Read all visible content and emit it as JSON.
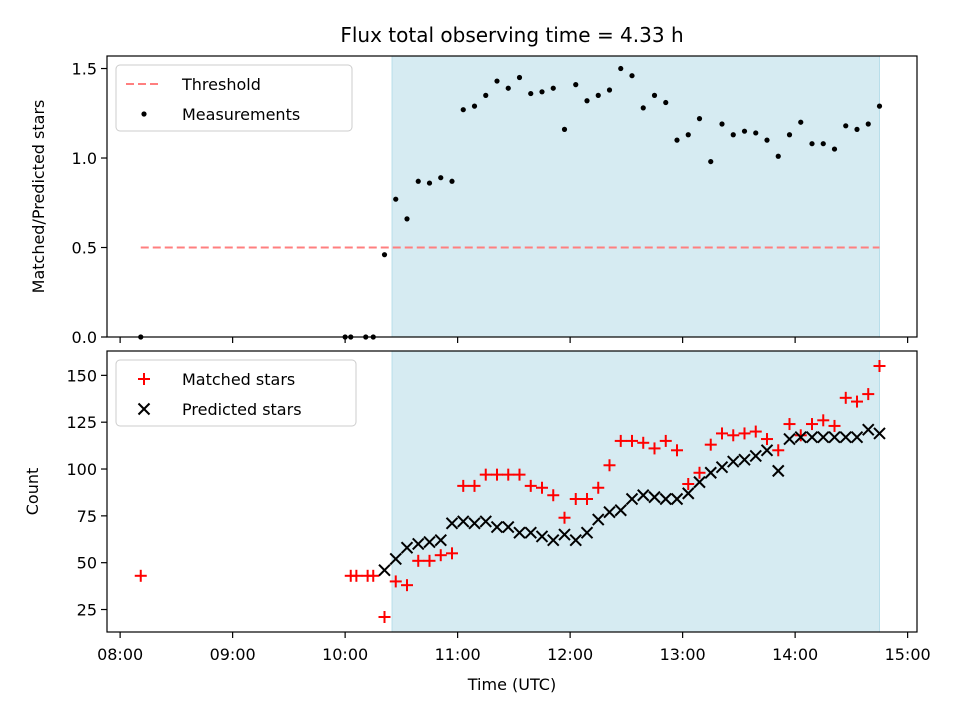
{
  "chart_data": [
    {
      "type": "scatter",
      "title": "Flux total observing time = 4.33 h",
      "xlabel": "",
      "ylabel": "Matched/Predicted stars",
      "xlim": [
        "07:53",
        "15:05"
      ],
      "ylim": [
        0,
        1.57
      ],
      "yticks": [
        0.0,
        0.5,
        1.0,
        1.5
      ],
      "ytick_labels": [
        "0.0",
        "0.5",
        "1.0",
        "1.5"
      ],
      "legend_position": "upper-left",
      "shaded_region": {
        "start": "10:25",
        "end": "14:45",
        "color": "#add8e6"
      },
      "series": [
        {
          "name": "Threshold",
          "style": "dashed-line",
          "color": "#ff7f7f",
          "x": [
            "08:11",
            "14:45"
          ],
          "y": [
            0.5,
            0.5
          ]
        },
        {
          "name": "Measurements",
          "style": "point",
          "color": "#000000",
          "x": [
            "08:11",
            "10:00",
            "10:03",
            "10:11",
            "10:15",
            "10:21",
            "10:27",
            "10:33",
            "10:39",
            "10:45",
            "10:51",
            "10:57",
            "11:03",
            "11:09",
            "11:15",
            "11:21",
            "11:27",
            "11:33",
            "11:39",
            "11:45",
            "11:51",
            "11:57",
            "12:03",
            "12:09",
            "12:15",
            "12:21",
            "12:27",
            "12:33",
            "12:39",
            "12:45",
            "12:51",
            "12:57",
            "13:03",
            "13:09",
            "13:15",
            "13:21",
            "13:27",
            "13:33",
            "13:39",
            "13:45",
            "13:51",
            "13:57",
            "14:03",
            "14:09",
            "14:15",
            "14:21",
            "14:27",
            "14:33",
            "14:39",
            "14:45"
          ],
          "y": [
            0.0,
            0.0,
            0.0,
            0.0,
            0.0,
            0.46,
            0.77,
            0.66,
            0.87,
            0.86,
            0.89,
            0.87,
            1.27,
            1.29,
            1.35,
            1.43,
            1.39,
            1.45,
            1.36,
            1.37,
            1.39,
            1.16,
            1.41,
            1.32,
            1.35,
            1.38,
            1.5,
            1.46,
            1.28,
            1.35,
            1.31,
            1.1,
            1.13,
            1.22,
            0.98,
            1.19,
            1.13,
            1.15,
            1.14,
            1.1,
            1.01,
            1.13,
            1.2,
            1.08,
            1.08,
            1.05,
            1.18,
            1.16,
            1.19,
            1.29
          ]
        }
      ]
    },
    {
      "type": "scatter",
      "title": "",
      "xlabel": "Time (UTC)",
      "ylabel": "Count",
      "xlim": [
        "07:53",
        "15:05"
      ],
      "ylim": [
        13,
        163
      ],
      "yticks": [
        25,
        50,
        75,
        100,
        125,
        150
      ],
      "ytick_labels": [
        "25",
        "50",
        "75",
        "100",
        "125",
        "150"
      ],
      "xticks": [
        "08:00",
        "09:00",
        "10:00",
        "11:00",
        "12:00",
        "13:00",
        "14:00",
        "15:00"
      ],
      "xtick_labels": [
        "08:00",
        "09:00",
        "10:00",
        "11:00",
        "12:00",
        "13:00",
        "14:00",
        "15:00"
      ],
      "legend_position": "upper-left",
      "shaded_region": {
        "start": "10:25",
        "end": "14:45",
        "color": "#add8e6"
      },
      "series": [
        {
          "name": "Matched stars",
          "style": "plus",
          "color": "#ff0000",
          "x": [
            "08:11",
            "10:03",
            "10:06",
            "10:12",
            "10:15",
            "10:21",
            "10:27",
            "10:33",
            "10:39",
            "10:45",
            "10:51",
            "10:57",
            "11:03",
            "11:09",
            "11:15",
            "11:21",
            "11:27",
            "11:33",
            "11:39",
            "11:45",
            "11:51",
            "11:57",
            "12:03",
            "12:09",
            "12:15",
            "12:21",
            "12:27",
            "12:33",
            "12:39",
            "12:45",
            "12:51",
            "12:57",
            "13:03",
            "13:09",
            "13:15",
            "13:21",
            "13:27",
            "13:33",
            "13:39",
            "13:45",
            "13:51",
            "13:57",
            "14:03",
            "14:09",
            "14:15",
            "14:21",
            "14:27",
            "14:33",
            "14:39",
            "14:45"
          ],
          "y": [
            43,
            43,
            43,
            43,
            43,
            21,
            40,
            38,
            51,
            51,
            54,
            55,
            91,
            91,
            97,
            97,
            97,
            97,
            91,
            90,
            86,
            74,
            84,
            84,
            90,
            102,
            115,
            115,
            114,
            111,
            115,
            110,
            92,
            98,
            113,
            119,
            118,
            119,
            120,
            116,
            110,
            124,
            118,
            124,
            126,
            123,
            138,
            136,
            140,
            155
          ]
        },
        {
          "name": "Predicted stars",
          "style": "x",
          "color": "#000000",
          "x": [
            "10:21",
            "10:27",
            "10:33",
            "10:39",
            "10:45",
            "10:51",
            "10:57",
            "11:03",
            "11:09",
            "11:15",
            "11:21",
            "11:27",
            "11:33",
            "11:39",
            "11:45",
            "11:51",
            "11:57",
            "12:03",
            "12:09",
            "12:15",
            "12:21",
            "12:27",
            "12:33",
            "12:39",
            "12:45",
            "12:51",
            "12:57",
            "13:03",
            "13:09",
            "13:15",
            "13:21",
            "13:27",
            "13:33",
            "13:39",
            "13:45",
            "13:51",
            "13:57",
            "14:03",
            "14:09",
            "14:15",
            "14:21",
            "14:27",
            "14:33",
            "14:39",
            "14:45"
          ],
          "y": [
            46,
            52,
            58,
            60,
            61,
            62,
            71,
            72,
            71,
            72,
            69,
            69,
            66,
            66,
            64,
            62,
            65,
            62,
            66,
            73,
            77,
            78,
            84,
            86,
            85,
            84,
            84,
            87,
            93,
            98,
            101,
            104,
            105,
            107,
            110,
            99,
            116,
            117,
            117,
            117,
            117,
            117,
            117,
            121,
            119
          ]
        }
      ]
    }
  ]
}
